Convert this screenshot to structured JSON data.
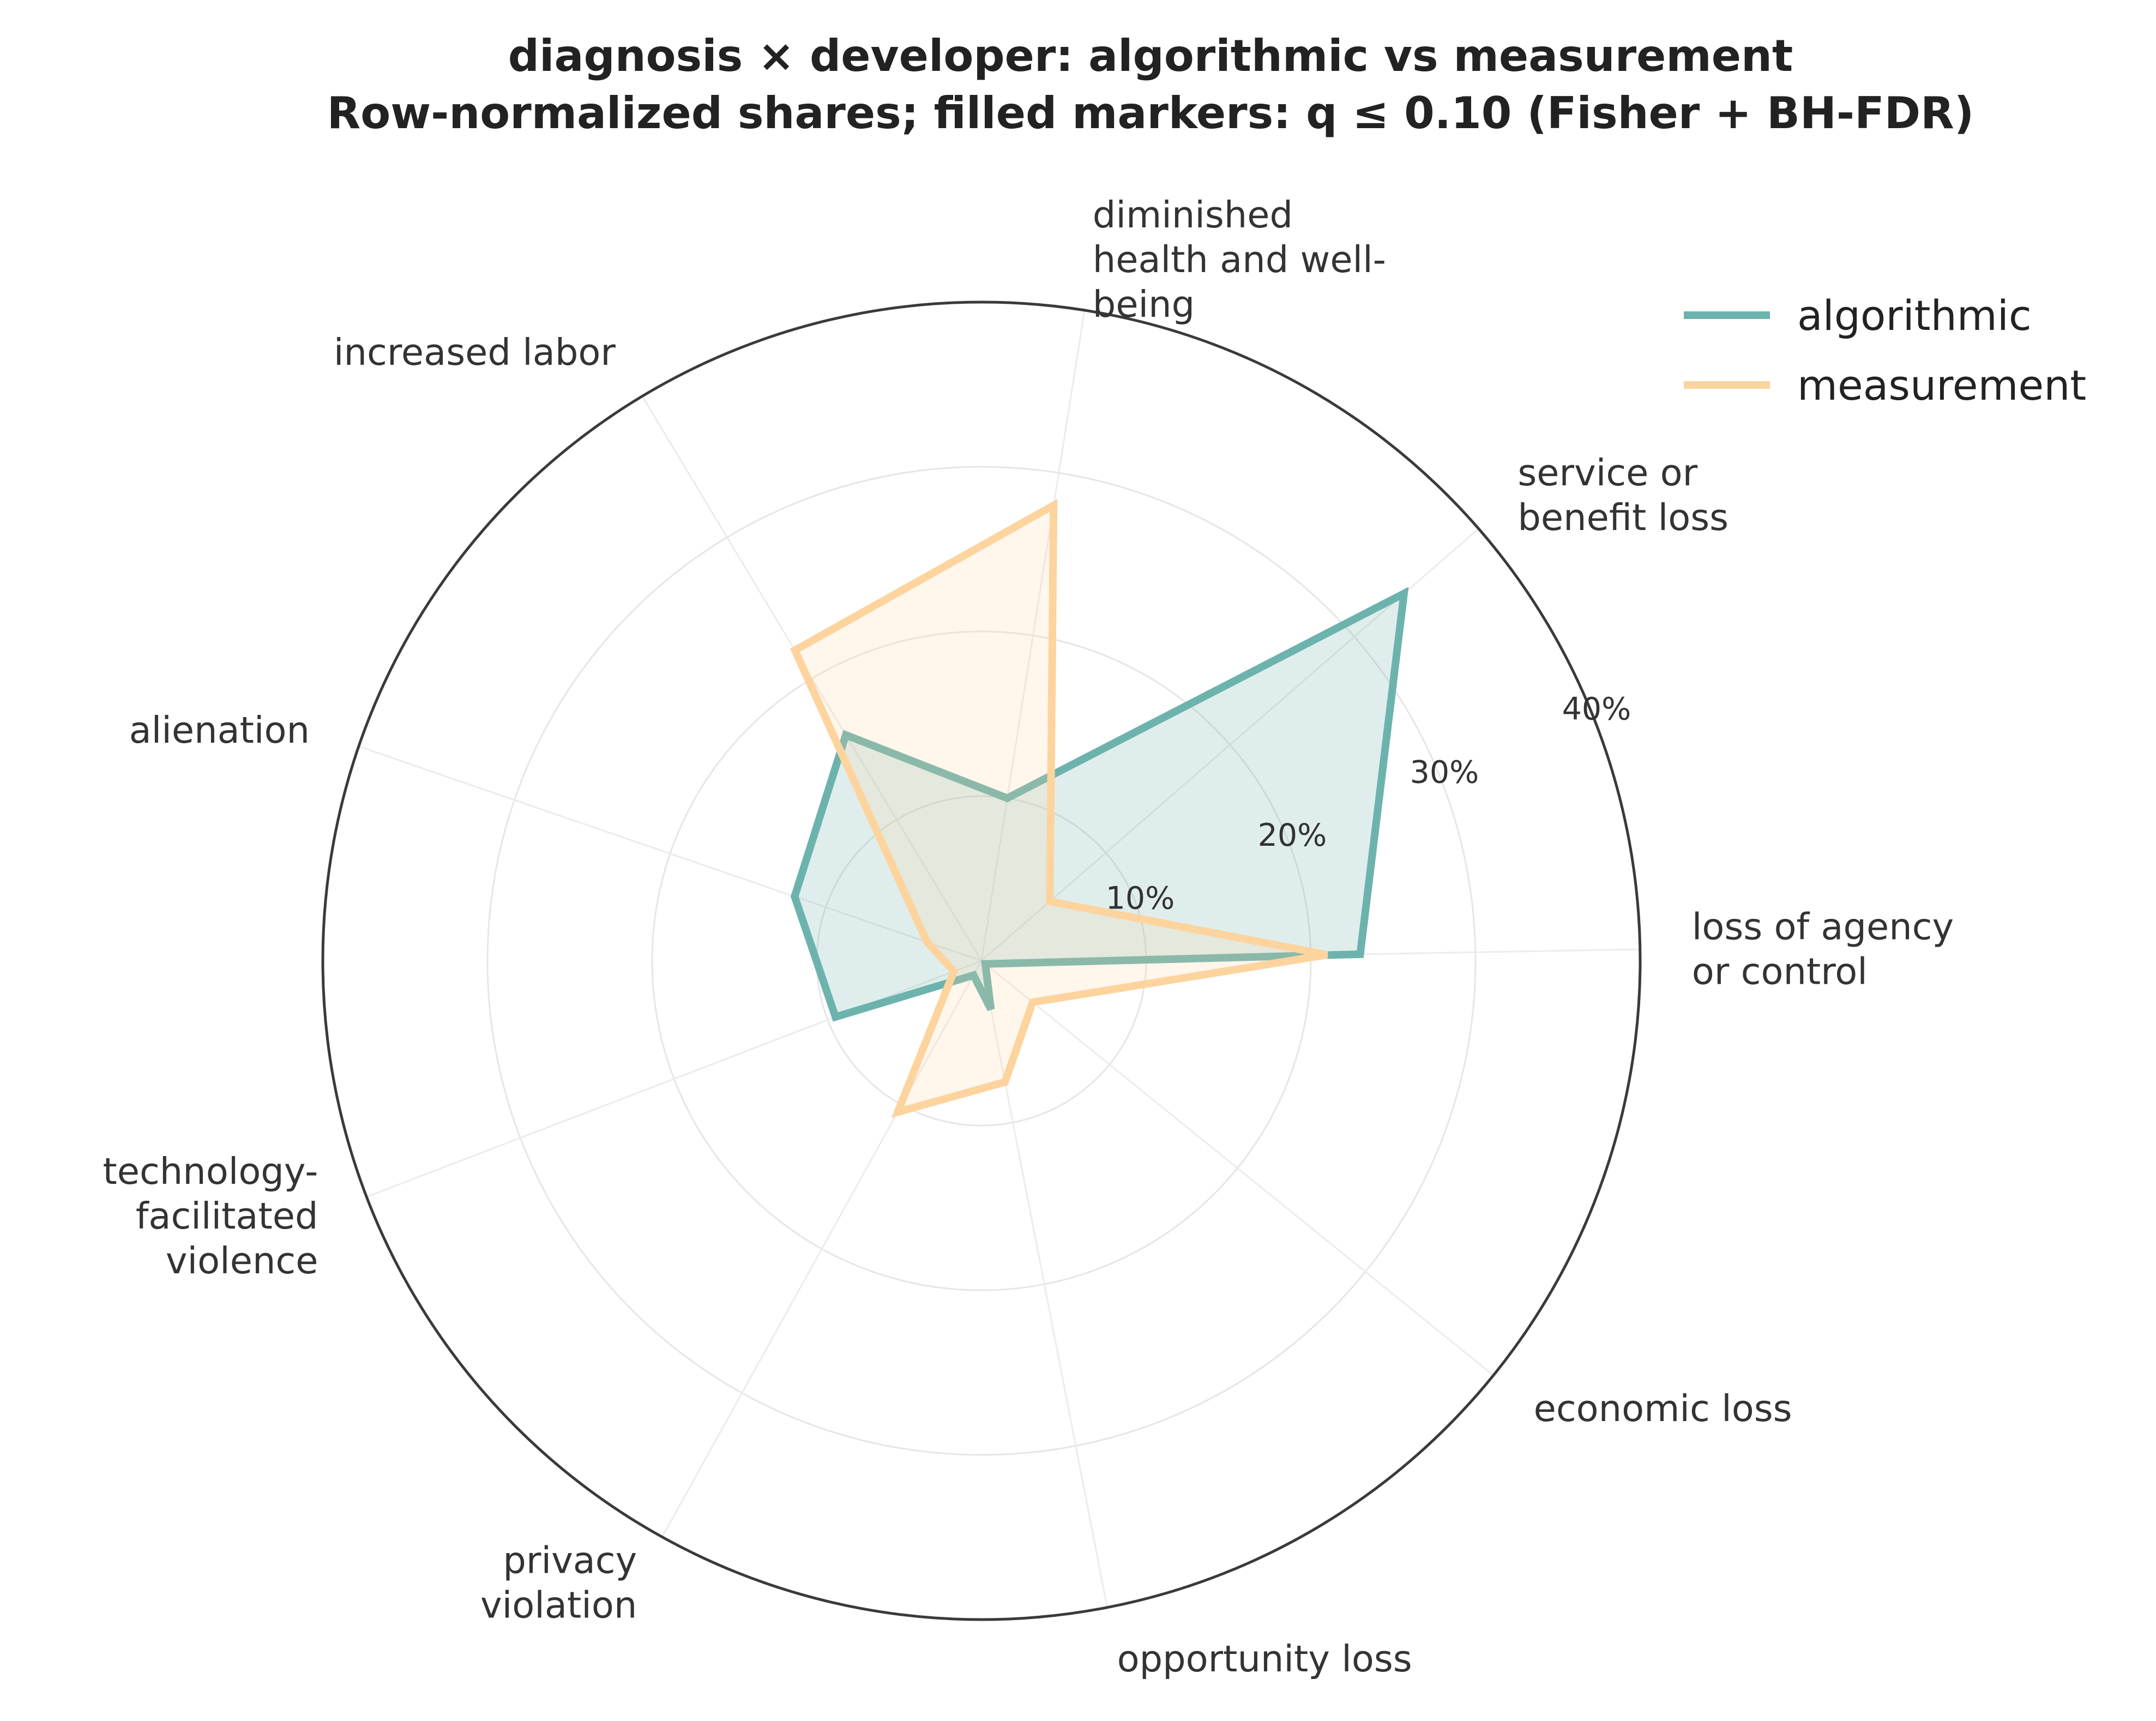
{
  "chart_data": {
    "type": "radar",
    "title": [
      "diagnosis × developer: algorithmic vs measurement",
      "Row-normalized shares; filled markers: q ≤ 0.10 (Fisher + BH-FDR)"
    ],
    "categories": [
      [
        "loss of agency",
        "or control"
      ],
      [
        "service or",
        "benefit loss"
      ],
      [
        "diminished",
        "health and well-",
        "being"
      ],
      [
        "increased labor"
      ],
      [
        "alienation"
      ],
      [
        "technology-",
        "facilitated",
        "violence"
      ],
      [
        "privacy",
        "violation"
      ],
      [
        "opportunity loss"
      ],
      [
        "economic loss"
      ]
    ],
    "series": [
      {
        "name": "algorithmic",
        "values": [
          23.0,
          34.0,
          10.0,
          16.0,
          12.0,
          9.5,
          1.0,
          3.0,
          0.3
        ],
        "color": "#6db3ad"
      },
      {
        "name": "measurement",
        "values": [
          21.0,
          5.5,
          28.0,
          22.0,
          3.5,
          1.8,
          10.5,
          7.5,
          4.0
        ],
        "color": "#fdd49e"
      }
    ],
    "r_ticks": [
      10,
      20,
      30,
      40
    ],
    "r_tick_labels": [
      "10%",
      "20%",
      "30%",
      "40%"
    ],
    "r_max": 40,
    "legend_position": "top-right",
    "grid": true
  }
}
